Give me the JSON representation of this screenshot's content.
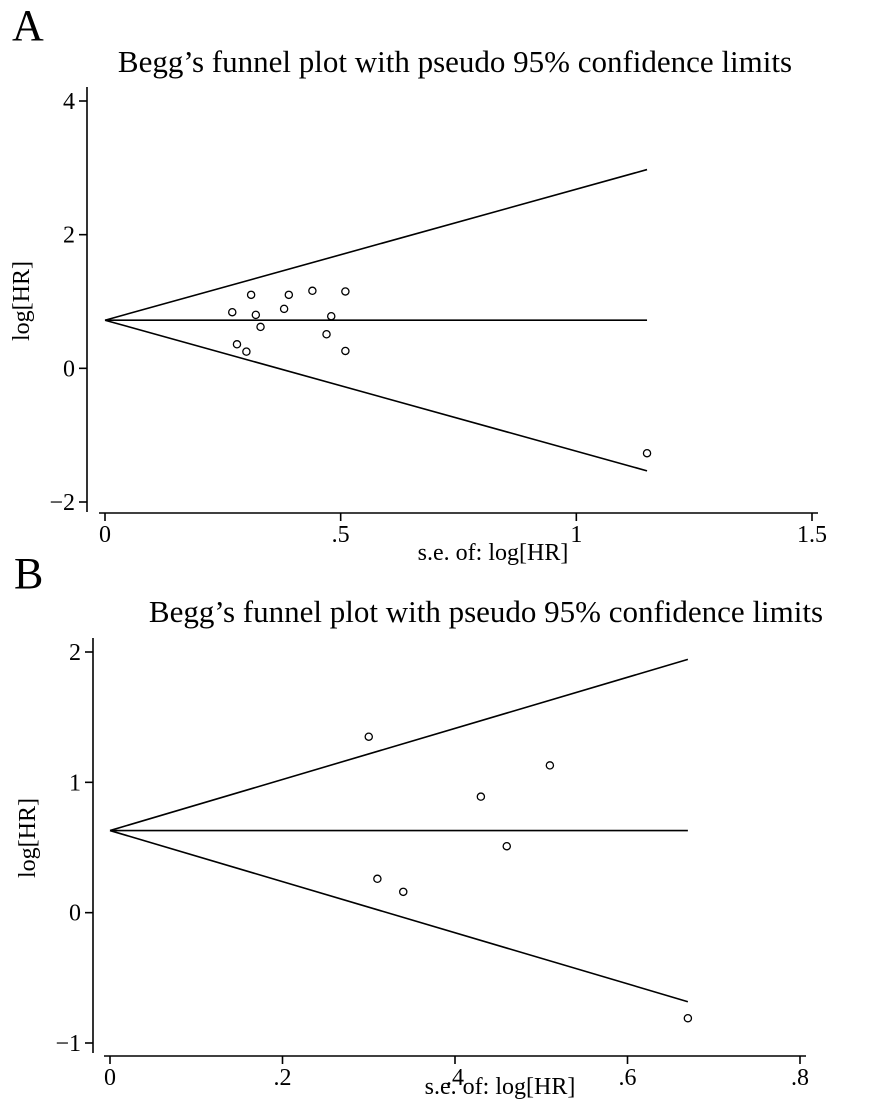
{
  "chart_data": [
    {
      "panel": "A",
      "type": "scatter",
      "title": "Begg’s funnel plot with pseudo 95% confidence limits",
      "xlabel": "s.e. of: log[HR]",
      "ylabel": "log[HR]",
      "xlim": [
        0,
        1.5
      ],
      "ylim": [
        -2,
        4
      ],
      "xticks": [
        0,
        0.5,
        1,
        1.5
      ],
      "xtick_labels": [
        "0",
        ".5",
        "1",
        "1.5"
      ],
      "yticks": [
        -2,
        0,
        2,
        4
      ],
      "ytick_labels": [
        "−2",
        "0",
        "2",
        "4"
      ],
      "pooled_estimate": 0.72,
      "max_se": 1.15,
      "points": [
        {
          "x": 0.27,
          "y": 0.84
        },
        {
          "x": 0.28,
          "y": 0.36
        },
        {
          "x": 0.3,
          "y": 0.25
        },
        {
          "x": 0.31,
          "y": 1.1
        },
        {
          "x": 0.32,
          "y": 0.8
        },
        {
          "x": 0.33,
          "y": 0.62
        },
        {
          "x": 0.38,
          "y": 0.89
        },
        {
          "x": 0.39,
          "y": 1.1
        },
        {
          "x": 0.44,
          "y": 1.16
        },
        {
          "x": 0.47,
          "y": 0.51
        },
        {
          "x": 0.48,
          "y": 0.78
        },
        {
          "x": 0.51,
          "y": 1.15
        },
        {
          "x": 0.51,
          "y": 0.26
        },
        {
          "x": 1.15,
          "y": -1.27
        }
      ]
    },
    {
      "panel": "B",
      "type": "scatter",
      "title": "Begg’s funnel plot with pseudo 95% confidence limits",
      "xlabel": "s.e. of: log[HR]",
      "ylabel": "log[HR]",
      "xlim": [
        0,
        0.8
      ],
      "ylim": [
        -1,
        2
      ],
      "xticks": [
        0,
        0.2,
        0.4,
        0.6,
        0.8
      ],
      "xtick_labels": [
        "0",
        ".2",
        ".4",
        ".6",
        ".8"
      ],
      "yticks": [
        -1,
        0,
        1,
        2
      ],
      "ytick_labels": [
        "−1",
        "0",
        "1",
        "2"
      ],
      "pooled_estimate": 0.63,
      "max_se": 0.67,
      "points": [
        {
          "x": 0.3,
          "y": 1.35
        },
        {
          "x": 0.31,
          "y": 0.26
        },
        {
          "x": 0.34,
          "y": 0.16
        },
        {
          "x": 0.43,
          "y": 0.89
        },
        {
          "x": 0.46,
          "y": 0.51
        },
        {
          "x": 0.51,
          "y": 1.13
        },
        {
          "x": 0.67,
          "y": -0.81
        }
      ]
    }
  ],
  "labels": {
    "panel_a": "A",
    "panel_b": "B"
  }
}
